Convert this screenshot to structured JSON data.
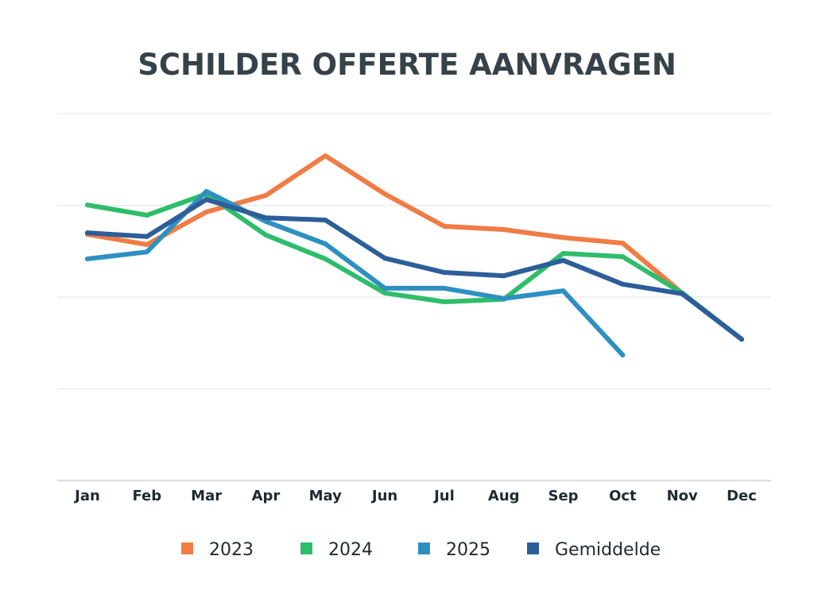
{
  "chart_data": {
    "type": "line",
    "title": "SCHILDER OFFERTE AANVRAGEN",
    "xlabel": "",
    "ylabel": "",
    "categories": [
      "Jan",
      "Feb",
      "Mar",
      "Apr",
      "May",
      "Jun",
      "Jul",
      "Aug",
      "Sep",
      "Oct",
      "Nov",
      "Dec"
    ],
    "ylim": [
      0,
      100
    ],
    "y_ticks_visible": false,
    "grid": true,
    "legend_position": "bottom",
    "series": [
      {
        "name": "2023",
        "color": "#F07C45",
        "values": [
          67.1,
          64.3,
          73.2,
          77.7,
          88.5,
          78.1,
          69.3,
          68.4,
          66.2,
          64.7,
          51.1,
          38.5
        ]
      },
      {
        "name": "2024",
        "color": "#2EBD6B",
        "values": [
          75.1,
          72.3,
          78.1,
          66.9,
          60.4,
          51.1,
          48.7,
          49.4,
          61.9,
          61.0,
          51.1,
          38.5
        ]
      },
      {
        "name": "2025",
        "color": "#2E90C1",
        "values": [
          60.4,
          62.3,
          78.8,
          70.6,
          64.5,
          52.4,
          52.4,
          49.6,
          51.7,
          34.2,
          null,
          null
        ]
      },
      {
        "name": "Gemiddelde",
        "color": "#2C5E99",
        "values": [
          67.5,
          66.5,
          76.6,
          71.6,
          71.0,
          60.6,
          56.7,
          55.8,
          60.0,
          53.5,
          50.9,
          38.5
        ]
      }
    ]
  }
}
